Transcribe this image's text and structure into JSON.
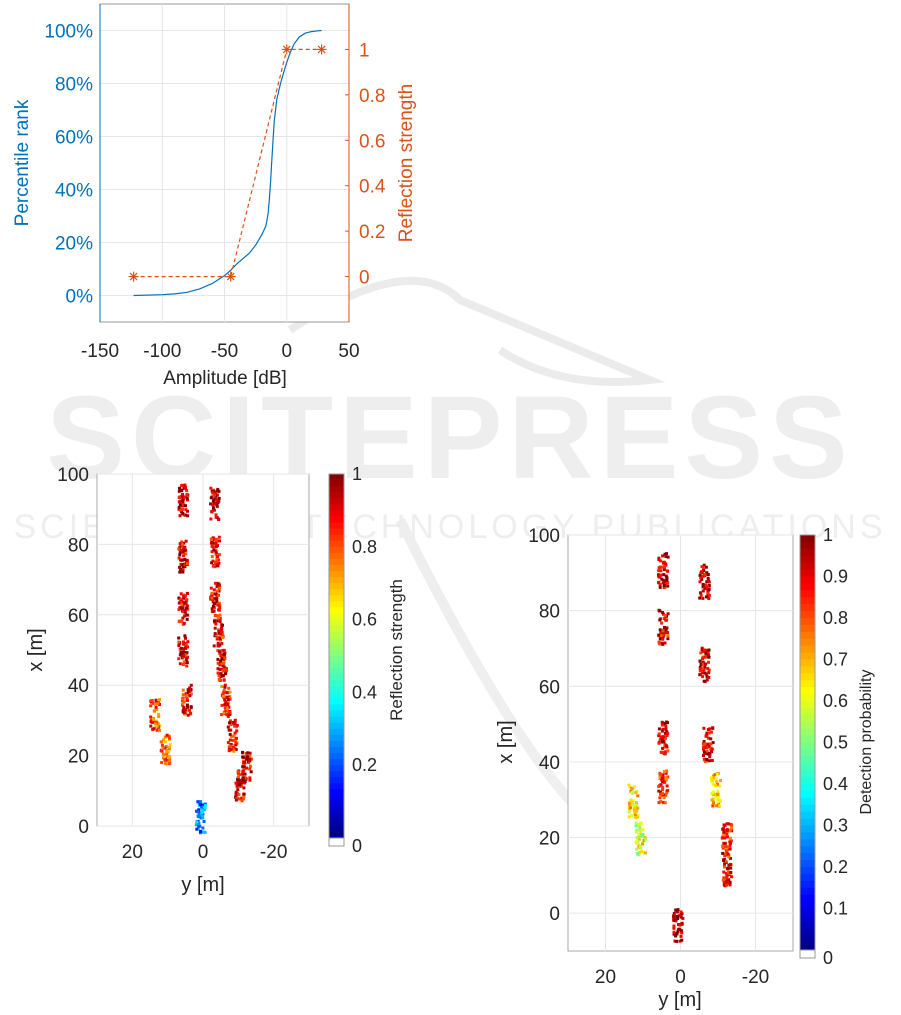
{
  "chart_data": [
    {
      "type": "line",
      "xlabel": "Amplitude [dB]",
      "ylabel_left": "Percentile rank",
      "ylabel_right": "Reflection strength",
      "xlim": [
        -150,
        50
      ],
      "xticks": [
        "-150",
        "-100",
        "-50",
        "0",
        "50"
      ],
      "ylim_left_percent": [
        -10,
        110
      ],
      "yticks_left": [
        "0%",
        "20%",
        "40%",
        "60%",
        "80%",
        "100%"
      ],
      "ylim_right": [
        -0.2,
        1.2
      ],
      "yticks_right": [
        "0",
        "0.2",
        "0.4",
        "0.6",
        "0.8",
        "1"
      ],
      "grid": true,
      "series": [
        {
          "axis": "left",
          "style": "solid",
          "color": "#0072BD",
          "x": [
            -123,
            -100,
            -90,
            -80,
            -70,
            -60,
            -50,
            -45,
            -40,
            -35,
            -30,
            -25,
            -20,
            -17,
            -16,
            -15,
            -14,
            -13,
            -12,
            -11,
            -10,
            -8,
            -5,
            -2,
            0,
            3,
            6,
            10,
            15,
            20,
            25,
            28
          ],
          "y": [
            0,
            0.3,
            0.6,
            1.2,
            2.5,
            4.5,
            7.5,
            9.5,
            12,
            14,
            16,
            19,
            23,
            26,
            28,
            31,
            36,
            43,
            51,
            59,
            66,
            74,
            80,
            85,
            88,
            92,
            95,
            97.5,
            99,
            99.6,
            99.9,
            100
          ]
        },
        {
          "axis": "right",
          "style": "dashed",
          "marker": "asterisk",
          "color": "#D95319",
          "x": [
            -123,
            -45,
            0,
            28
          ],
          "y": [
            0,
            0,
            1,
            1
          ]
        }
      ]
    },
    {
      "type": "scatter",
      "xlabel": "y [m]",
      "ylabel": "x [m]",
      "xlim": [
        30,
        -30
      ],
      "xticks": [
        "20",
        "0",
        "-20"
      ],
      "ylim": [
        0,
        100
      ],
      "yticks": [
        "0",
        "20",
        "40",
        "60",
        "80",
        "100"
      ],
      "colorbar_label": "Reflection strength",
      "colorbar_ticks": [
        "0",
        "0.2",
        "0.4",
        "0.6",
        "0.8",
        "1"
      ],
      "colormap": "jet",
      "clusters": [
        {
          "y": 6,
          "x": 93,
          "v": 0.95
        },
        {
          "y": 6,
          "x": 77,
          "v": 0.92
        },
        {
          "y": 6,
          "x": 62,
          "v": 0.9
        },
        {
          "y": 6,
          "x": 50,
          "v": 0.9
        },
        {
          "y": 5,
          "x": 36,
          "v": 0.88
        },
        {
          "y": -3,
          "x": 92,
          "v": 0.95
        },
        {
          "y": -3,
          "x": 78,
          "v": 0.9
        },
        {
          "y": -3,
          "x": 65,
          "v": 0.9
        },
        {
          "y": -4,
          "x": 56,
          "v": 0.88
        },
        {
          "y": -5,
          "x": 46,
          "v": 0.9
        },
        {
          "y": -6,
          "x": 36,
          "v": 0.85
        },
        {
          "y": -8,
          "x": 26,
          "v": 0.85
        },
        {
          "y": -12,
          "x": 17,
          "v": 0.9
        },
        {
          "y": -10,
          "x": 12,
          "v": 0.9
        },
        {
          "y": 14,
          "x": 32,
          "v": 0.8
        },
        {
          "y": 11,
          "x": 22,
          "v": 0.78
        },
        {
          "y": 1,
          "x": 3,
          "v": 0.25
        }
      ]
    },
    {
      "type": "scatter",
      "xlabel": "y [m]",
      "ylabel": "x [m]",
      "xlim": [
        30,
        -30
      ],
      "xticks": [
        "20",
        "0",
        "-20"
      ],
      "ylim": [
        -10,
        100
      ],
      "yticks": [
        "0",
        "20",
        "40",
        "60",
        "80",
        "100"
      ],
      "colorbar_label": "Detection probability",
      "colorbar_ticks": [
        "0",
        "0.1",
        "0.2",
        "0.3",
        "0.4",
        "0.5",
        "0.6",
        "0.7",
        "0.8",
        "0.9",
        "1"
      ],
      "colormap": "jet",
      "clusters": [
        {
          "y": 5,
          "x": 91,
          "v": 0.95
        },
        {
          "y": 5,
          "x": 76,
          "v": 0.9
        },
        {
          "y": 5,
          "x": 47,
          "v": 0.9
        },
        {
          "y": 5,
          "x": 34,
          "v": 0.85
        },
        {
          "y": -6,
          "x": 88,
          "v": 0.95
        },
        {
          "y": -6,
          "x": 66,
          "v": 0.92
        },
        {
          "y": -7,
          "x": 45,
          "v": 0.9
        },
        {
          "y": -9,
          "x": 33,
          "v": 0.7
        },
        {
          "y": -12,
          "x": 20,
          "v": 0.85
        },
        {
          "y": -12,
          "x": 12,
          "v": 0.88
        },
        {
          "y": 13,
          "x": 30,
          "v": 0.65
        },
        {
          "y": 11,
          "x": 20,
          "v": 0.6
        },
        {
          "y": 1,
          "x": -3,
          "v": 0.98
        }
      ]
    }
  ],
  "watermark": {
    "logo": "SCITEPRESS",
    "tagline": "SCIENCE AND TECHNOLOGY PUBLICATIONS"
  }
}
